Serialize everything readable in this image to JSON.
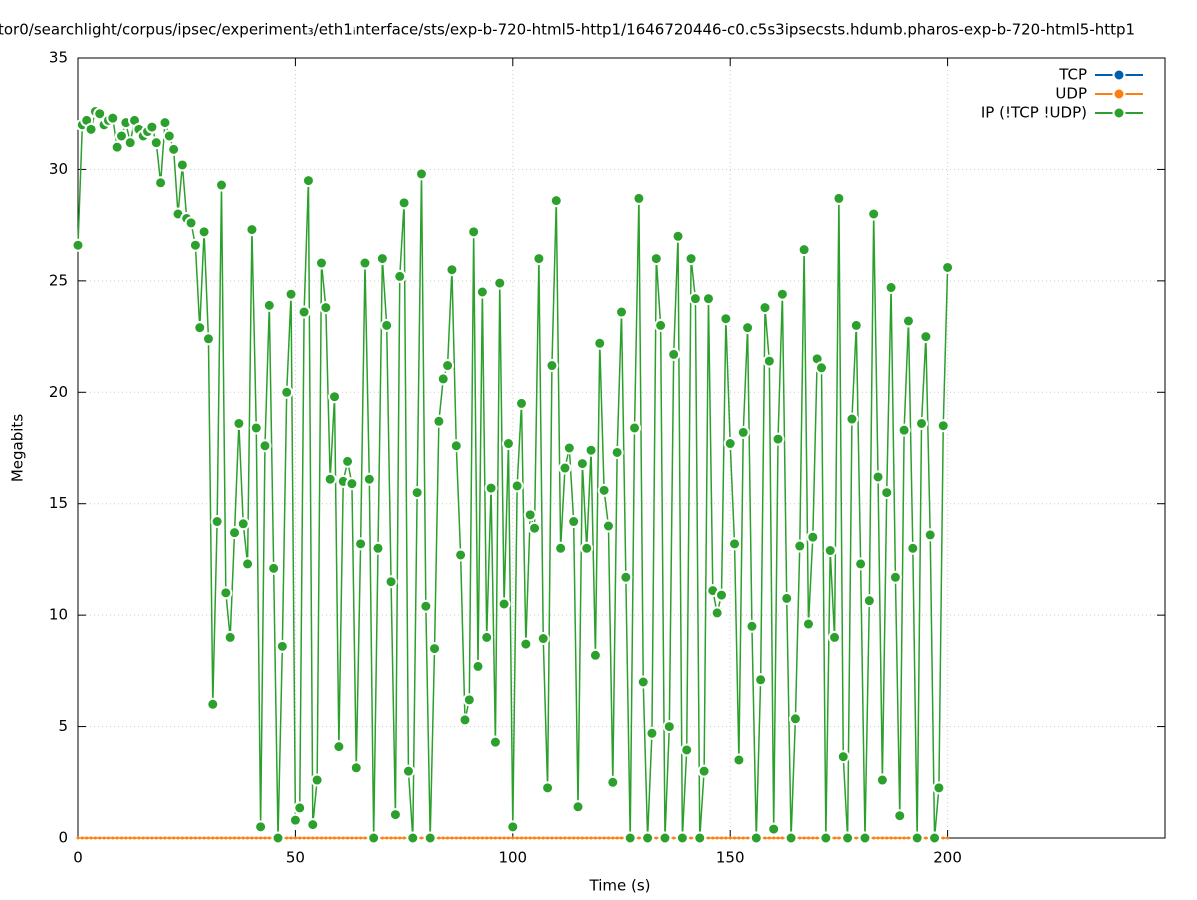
{
  "chart_data": {
    "type": "line",
    "title": "tor0/searchlight/corpus/ipsec/experiment₃/eth1ᵢnterface/sts/exp-b-720-html5-http1/1646720446-c0.c5s3ipsecsts.hdumb.pharos-exp-b-720-html5-http1",
    "xlabel": "Time (s)",
    "ylabel": "Megabits",
    "xlim": [
      0,
      250
    ],
    "xticks": [
      0,
      50,
      100,
      150,
      200
    ],
    "ylim": [
      0,
      35
    ],
    "yticks": [
      0,
      5,
      10,
      15,
      20,
      25,
      30,
      35
    ],
    "grid": true,
    "legend": "top-right",
    "x": [
      0,
      1,
      2,
      3,
      4,
      5,
      6,
      7,
      8,
      9,
      10,
      11,
      12,
      13,
      14,
      15,
      16,
      17,
      18,
      19,
      20,
      21,
      22,
      23,
      24,
      25,
      26,
      27,
      28,
      29,
      30,
      31,
      32,
      33,
      34,
      35,
      36,
      37,
      38,
      39,
      40,
      41,
      42,
      43,
      44,
      45,
      46,
      47,
      48,
      49,
      50,
      51,
      52,
      53,
      54,
      55,
      56,
      57,
      58,
      59,
      60,
      61,
      62,
      63,
      64,
      65,
      66,
      67,
      68,
      69,
      70,
      71,
      72,
      73,
      74,
      75,
      76,
      77,
      78,
      79,
      80,
      81,
      82,
      83,
      84,
      85,
      86,
      87,
      88,
      89,
      90,
      91,
      92,
      93,
      94,
      95,
      96,
      97,
      98,
      99,
      100,
      101,
      102,
      103,
      104,
      105,
      106,
      107,
      108,
      109,
      110,
      111,
      112,
      113,
      114,
      115,
      116,
      117,
      118,
      119,
      120,
      121,
      122,
      123,
      124,
      125,
      126,
      127,
      128,
      129,
      130,
      131,
      132,
      133,
      134,
      135,
      136,
      137,
      138,
      139,
      140,
      141,
      142,
      143,
      144,
      145,
      146,
      147,
      148,
      149,
      150,
      151,
      152,
      153,
      154,
      155,
      156,
      157,
      158,
      159,
      160,
      161,
      162,
      163,
      164,
      165,
      166,
      167,
      168,
      169,
      170,
      171,
      172,
      173,
      174,
      175,
      176,
      177,
      178,
      179,
      180,
      181,
      182,
      183,
      184,
      185,
      186,
      187,
      188,
      189,
      190,
      191,
      192,
      193,
      194,
      195,
      196,
      197,
      198,
      199,
      200
    ],
    "series": [
      {
        "name": "TCP",
        "color": "#0060ad"
      },
      {
        "name": "UDP",
        "color": "#ff7f0e",
        "values": [
          0,
          0,
          0,
          0,
          0,
          0,
          0,
          0,
          0,
          0,
          0,
          0,
          0,
          0,
          0,
          0,
          0,
          0,
          0,
          0,
          0,
          0,
          0,
          0,
          0,
          0,
          0,
          0,
          0,
          0,
          0,
          0,
          0,
          0,
          0,
          0,
          0,
          0,
          0,
          0,
          0,
          0,
          0,
          0,
          0,
          0,
          0,
          0,
          0,
          0,
          0,
          0,
          0,
          0,
          0,
          0,
          0,
          0,
          0,
          0,
          0,
          0,
          0,
          0,
          0,
          0,
          0,
          0,
          0,
          0,
          0,
          0,
          0,
          0,
          0,
          0,
          0,
          0,
          0,
          0,
          0,
          0,
          0,
          0,
          0,
          0,
          0,
          0,
          0,
          0,
          0,
          0,
          0,
          0,
          0,
          0,
          0,
          0,
          0,
          0,
          0,
          0,
          0,
          0,
          0,
          0,
          0,
          0,
          0,
          0,
          0,
          0,
          0,
          0,
          0,
          0,
          0,
          0,
          0,
          0,
          0,
          0,
          0,
          0,
          0,
          0,
          0,
          0,
          0,
          0,
          0,
          0,
          0,
          0,
          0,
          0,
          0,
          0,
          0,
          0,
          0,
          0,
          0,
          0,
          0,
          0,
          0,
          0,
          0,
          0,
          0,
          0,
          0,
          0,
          0,
          0,
          0,
          0,
          0,
          0,
          0,
          0,
          0,
          0,
          0,
          0,
          0,
          0,
          0,
          0,
          0,
          0,
          0,
          0,
          0,
          0,
          0,
          0,
          0,
          0,
          0,
          0,
          0,
          0,
          0,
          0,
          0,
          0,
          0,
          0,
          0,
          0,
          0,
          0,
          0,
          0,
          0,
          0,
          0,
          0,
          0
        ]
      },
      {
        "name": "IP (!TCP  !UDP)",
        "color": "#2ca02c",
        "values": [
          26.6,
          32.0,
          32.2,
          31.8,
          32.6,
          32.5,
          32.0,
          32.2,
          32.3,
          31.0,
          31.5,
          32.1,
          31.2,
          32.2,
          31.8,
          31.5,
          31.7,
          31.9,
          31.2,
          29.4,
          32.1,
          31.5,
          30.9,
          28.0,
          30.2,
          27.8,
          27.6,
          26.6,
          22.9,
          27.2,
          22.4,
          6.0,
          14.2,
          29.3,
          11.0,
          9.0,
          13.7,
          18.6,
          14.1,
          12.3,
          27.3,
          18.4,
          0.5,
          17.6,
          23.9,
          12.1,
          0,
          8.6,
          20.0,
          24.4,
          0.8,
          1.35,
          23.6,
          29.5,
          0.6,
          2.6,
          25.8,
          23.8,
          16.1,
          19.8,
          4.1,
          16.0,
          16.9,
          15.9,
          3.15,
          13.2,
          25.8,
          16.1,
          0,
          13.0,
          26.0,
          23.0,
          11.5,
          1.05,
          25.2,
          28.5,
          3.0,
          0,
          15.5,
          29.8,
          10.4,
          0,
          8.5,
          18.7,
          20.6,
          21.2,
          25.5,
          17.6,
          12.7,
          5.3,
          6.2,
          27.2,
          7.7,
          24.5,
          9.0,
          15.7,
          4.3,
          24.9,
          10.5,
          17.7,
          0.5,
          15.8,
          19.5,
          8.7,
          14.5,
          13.9,
          26.0,
          8.95,
          2.25,
          21.2,
          28.6,
          13.0,
          16.6,
          17.5,
          14.2,
          1.4,
          16.8,
          13.0,
          17.4,
          8.2,
          22.2,
          15.6,
          14.0,
          2.5,
          17.3,
          23.6,
          11.7,
          0,
          18.4,
          28.7,
          7.0,
          0,
          4.7,
          26.0,
          23.0,
          0,
          5.0,
          21.7,
          27.0,
          0,
          3.95,
          26.0,
          24.2,
          0,
          3.0,
          24.2,
          11.1,
          10.1,
          10.9,
          23.3,
          17.7,
          13.2,
          3.5,
          18.2,
          22.9,
          9.5,
          0,
          7.1,
          23.8,
          21.4,
          0.4,
          17.9,
          24.4,
          10.75,
          0,
          5.35,
          13.1,
          26.4,
          9.6,
          13.5,
          21.5,
          21.1,
          0,
          12.9,
          9.0,
          28.7,
          3.65,
          0,
          18.8,
          23.0,
          12.3,
          0,
          10.65,
          28.0,
          16.2,
          2.6,
          15.5,
          24.7,
          11.7,
          1.0,
          18.3,
          23.2,
          13.0,
          0,
          18.6,
          22.5,
          13.6,
          0,
          2.25,
          18.5,
          25.6
        ]
      }
    ]
  }
}
